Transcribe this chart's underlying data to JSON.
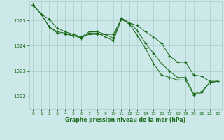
{
  "bg_color": "#cce8e8",
  "grid_color": "#aacccc",
  "line_color": "#1a6b1a",
  "xlabel": "Graphe pression niveau de la mer (hPa)",
  "ylim": [
    1021.5,
    1025.75
  ],
  "xlim": [
    -0.5,
    23.5
  ],
  "yticks": [
    1022,
    1023,
    1024,
    1025
  ],
  "xticks": [
    0,
    1,
    2,
    3,
    4,
    5,
    6,
    7,
    8,
    9,
    10,
    11,
    12,
    13,
    14,
    15,
    16,
    17,
    18,
    19,
    20,
    21,
    22,
    23
  ],
  "series": [
    {
      "x": [
        0,
        1,
        2,
        3,
        4,
        5,
        6,
        7,
        8,
        9,
        10,
        11,
        12,
        13,
        14,
        15,
        16,
        17,
        18,
        19,
        20,
        21,
        22,
        23
      ],
      "y": [
        1025.6,
        1025.25,
        1025.05,
        1024.7,
        1024.55,
        1024.45,
        1024.35,
        1024.45,
        1024.45,
        1024.45,
        1024.45,
        1025.05,
        1024.9,
        1024.8,
        1024.55,
        1024.35,
        1024.1,
        1023.6,
        1023.35,
        1023.35,
        1022.85,
        1022.8,
        1022.6,
        1022.6
      ]
    },
    {
      "x": [
        0,
        1,
        2,
        3,
        4,
        5,
        6,
        7,
        8,
        9,
        10,
        11,
        12,
        13,
        14,
        15,
        16,
        17,
        18,
        19,
        20,
        21,
        22,
        23
      ],
      "y": [
        1025.6,
        1025.25,
        1024.75,
        1024.55,
        1024.5,
        1024.4,
        1024.35,
        1024.55,
        1024.55,
        1024.45,
        1024.3,
        1025.1,
        1024.9,
        1024.6,
        1024.1,
        1023.7,
        1023.3,
        1023.0,
        1022.75,
        1022.75,
        1022.1,
        1022.2,
        1022.55,
        1022.6
      ]
    },
    {
      "x": [
        0,
        1,
        2,
        3,
        4,
        5,
        6,
        7,
        8,
        9,
        10,
        11,
        12,
        13,
        14,
        15,
        16,
        17,
        18,
        19,
        20,
        21,
        22,
        23
      ],
      "y": [
        1025.6,
        1025.25,
        1024.75,
        1024.5,
        1024.45,
        1024.4,
        1024.3,
        1024.5,
        1024.5,
        1024.35,
        1024.2,
        1025.05,
        1024.85,
        1024.4,
        1023.9,
        1023.3,
        1022.85,
        1022.75,
        1022.65,
        1022.65,
        1022.05,
        1022.15,
        1022.55,
        1022.6
      ]
    }
  ]
}
